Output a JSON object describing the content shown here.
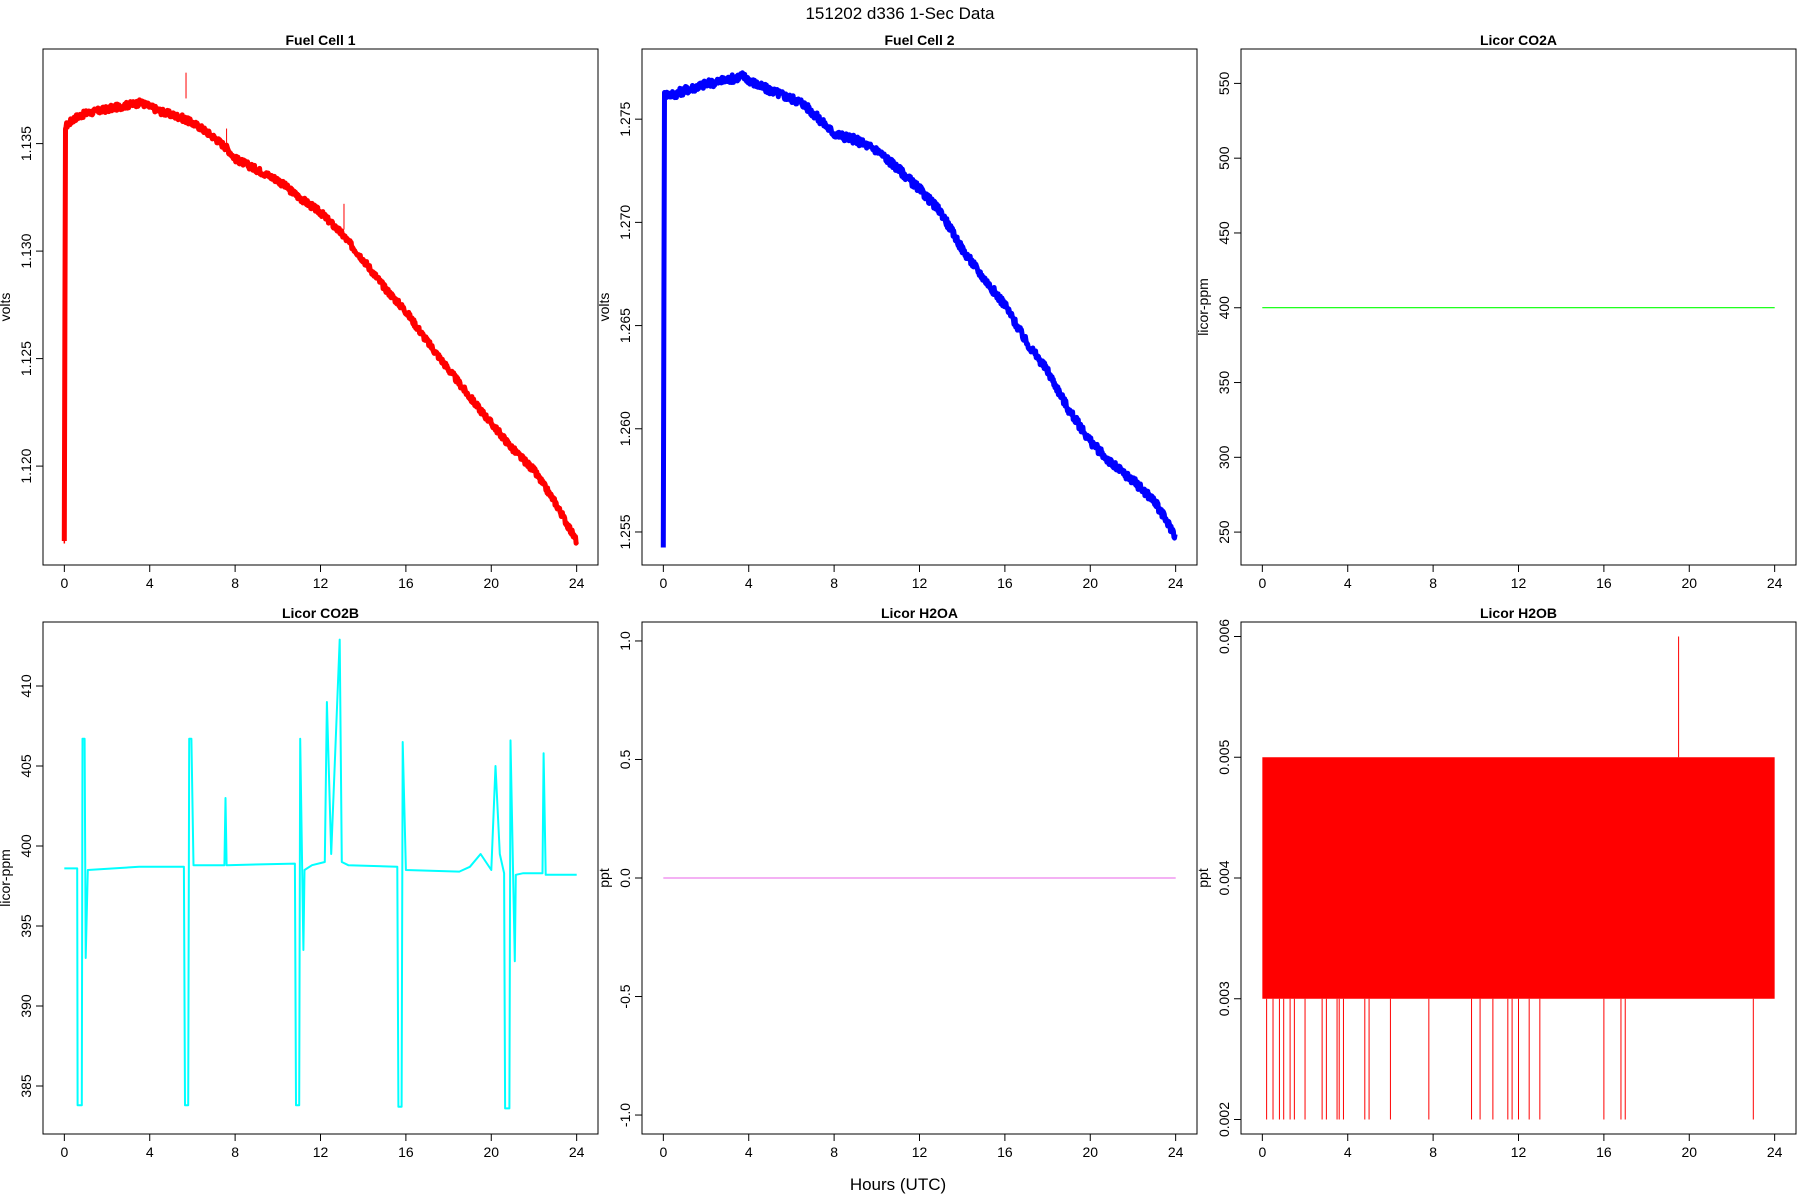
{
  "figure": {
    "title": "151202   d336   1-Sec Data",
    "xlabel": "Hours (UTC)"
  },
  "chart_data": [
    {
      "type": "line",
      "title": "Fuel Cell 1",
      "xlabel": "",
      "ylabel": "volts",
      "color": "#ff0000",
      "xlim": [
        -1,
        25
      ],
      "ylim": [
        1.1154,
        1.1394
      ],
      "xticks": [
        0,
        4,
        8,
        12,
        16,
        20,
        24
      ],
      "yticks": [
        1.12,
        1.125,
        1.13,
        1.135
      ],
      "ytick_labels": [
        "1.120",
        "1.125",
        "1.130",
        "1.135"
      ],
      "x": [
        0,
        0.05,
        0.5,
        1,
        2,
        3,
        3.6,
        4.5,
        5.5,
        6.3,
        7,
        7.6,
        8,
        9,
        10,
        11,
        12,
        13,
        14,
        15,
        16,
        17,
        18,
        19,
        20,
        21,
        22,
        23,
        24
      ],
      "y": [
        1.1164,
        1.1358,
        1.1362,
        1.1364,
        1.1366,
        1.1368,
        1.1369,
        1.1365,
        1.1362,
        1.1358,
        1.1353,
        1.1348,
        1.1343,
        1.1338,
        1.1333,
        1.1325,
        1.1318,
        1.1308,
        1.1296,
        1.1283,
        1.1272,
        1.1258,
        1.1245,
        1.1232,
        1.122,
        1.1208,
        1.1198,
        1.1183,
        1.1165
      ],
      "band_width": 0.0003,
      "spikes": [
        {
          "x": 5.7,
          "y": 1.1383
        },
        {
          "x": 7.6,
          "y": 1.1357
        },
        {
          "x": 13.1,
          "y": 1.1322
        }
      ]
    },
    {
      "type": "line",
      "title": "Fuel Cell 2",
      "xlabel": "",
      "ylabel": "volts",
      "color": "#0000ff",
      "xlim": [
        -1,
        25
      ],
      "ylim": [
        1.2534,
        1.2784
      ],
      "xticks": [
        0,
        4,
        8,
        12,
        16,
        20,
        24
      ],
      "yticks": [
        1.255,
        1.26,
        1.265,
        1.27,
        1.275
      ],
      "ytick_labels": [
        "1.255",
        "1.260",
        "1.265",
        "1.270",
        "1.275"
      ],
      "x": [
        0,
        0.05,
        0.5,
        1,
        2,
        3,
        3.7,
        4.5,
        5.5,
        6.5,
        7.3,
        8,
        9,
        10,
        11,
        12,
        13,
        14,
        15,
        16,
        17,
        18,
        19,
        20,
        21,
        22,
        23,
        24
      ],
      "y": [
        1.2544,
        1.2762,
        1.2762,
        1.2764,
        1.2767,
        1.2769,
        1.2771,
        1.2766,
        1.2762,
        1.2758,
        1.275,
        1.2743,
        1.274,
        1.2735,
        1.2726,
        1.2716,
        1.2705,
        1.2687,
        1.2673,
        1.266,
        1.2642,
        1.2628,
        1.2609,
        1.2594,
        1.2583,
        1.2575,
        1.2565,
        1.2548
      ],
      "band_width": 0.0004
    },
    {
      "type": "line",
      "title": "Licor CO2A",
      "xlabel": "",
      "ylabel": "licor-ppm",
      "color": "#00ff00",
      "xlim": [
        -1,
        25
      ],
      "ylim": [
        228,
        573
      ],
      "xticks": [
        0,
        4,
        8,
        12,
        16,
        20,
        24
      ],
      "yticks": [
        250,
        300,
        350,
        400,
        450,
        500,
        550
      ],
      "ytick_labels": [
        "250",
        "300",
        "350",
        "400",
        "450",
        "500",
        "550"
      ],
      "x": [
        0,
        24
      ],
      "y": [
        400,
        400
      ]
    },
    {
      "type": "line",
      "title": "Licor CO2B",
      "xlabel": "",
      "ylabel": "licor-ppm",
      "color": "#00ffff",
      "xlim": [
        -1,
        25
      ],
      "ylim": [
        382,
        414
      ],
      "xticks": [
        0,
        4,
        8,
        12,
        16,
        20,
        24
      ],
      "yticks": [
        385,
        390,
        395,
        400,
        405,
        410
      ],
      "ytick_labels": [
        "385",
        "390",
        "395",
        "400",
        "405",
        "410"
      ],
      "x": [
        0,
        0.6,
        0.62,
        0.82,
        0.85,
        0.95,
        1.0,
        1.1,
        3.5,
        5.6,
        5.65,
        5.8,
        5.85,
        5.95,
        6.05,
        7.5,
        7.55,
        7.6,
        10.8,
        10.85,
        11.0,
        11.05,
        11.2,
        11.25,
        11.6,
        12.2,
        12.3,
        12.5,
        12.9,
        13.0,
        13.3,
        15.6,
        15.65,
        15.8,
        15.85,
        16.0,
        18.5,
        19.0,
        19.5,
        20.0,
        20.2,
        20.4,
        20.6,
        20.65,
        20.85,
        20.9,
        21.1,
        21.15,
        21.5,
        22.0,
        22.4,
        22.45,
        22.55,
        24
      ],
      "y": [
        398.6,
        398.6,
        383.8,
        383.8,
        406.7,
        406.7,
        393.0,
        398.5,
        398.7,
        398.7,
        383.8,
        383.8,
        406.7,
        406.7,
        398.8,
        398.8,
        403.0,
        398.8,
        398.9,
        383.8,
        383.8,
        406.7,
        393.5,
        398.5,
        398.8,
        399.0,
        409.0,
        399.5,
        412.9,
        399.0,
        398.8,
        398.7,
        383.7,
        383.7,
        406.5,
        398.5,
        398.4,
        398.7,
        399.5,
        398.5,
        405.0,
        399.5,
        398.3,
        383.6,
        383.6,
        406.6,
        392.8,
        398.2,
        398.3,
        398.3,
        398.3,
        405.8,
        398.2,
        398.2
      ]
    },
    {
      "type": "line",
      "title": "Licor H2OA",
      "xlabel": "",
      "ylabel": "ppt",
      "color": "#ee82ee",
      "xlim": [
        -1,
        25
      ],
      "ylim": [
        -1.08,
        1.08
      ],
      "xticks": [
        0,
        4,
        8,
        12,
        16,
        20,
        24
      ],
      "yticks": [
        -1.0,
        -0.5,
        0.0,
        0.5,
        1.0
      ],
      "ytick_labels": [
        "-1.0",
        "-0.5",
        "0.0",
        "0.5",
        "1.0"
      ],
      "x": [
        0,
        24
      ],
      "y": [
        0.0,
        0.0
      ]
    },
    {
      "type": "line",
      "title": "Licor H2OB",
      "xlabel": "",
      "ylabel": "ppt",
      "color": "#ff0000",
      "xlim": [
        -1,
        25
      ],
      "ylim": [
        0.00188,
        0.00612
      ],
      "xticks": [
        0,
        4,
        8,
        12,
        16,
        20,
        24
      ],
      "yticks": [
        0.002,
        0.003,
        0.004,
        0.005,
        0.006
      ],
      "ytick_labels": [
        "0.002",
        "0.003",
        "0.004",
        "0.005",
        "0.006"
      ],
      "band": {
        "x": [
          0,
          24
        ],
        "low": 0.003,
        "high": 0.005
      },
      "low_spikes_x": [
        0.2,
        0.5,
        0.8,
        1.0,
        1.3,
        1.5,
        2.0,
        2.8,
        3.0,
        3.5,
        3.6,
        3.8,
        4.8,
        5.0,
        6.0,
        7.8,
        9.8,
        10.2,
        10.8,
        11.5,
        11.7,
        12.0,
        12.5,
        13.0,
        16.0,
        16.8,
        17.0,
        23.0
      ],
      "low_spike_value": 0.002,
      "high_spike": {
        "x": 19.5,
        "y": 0.006
      }
    }
  ]
}
